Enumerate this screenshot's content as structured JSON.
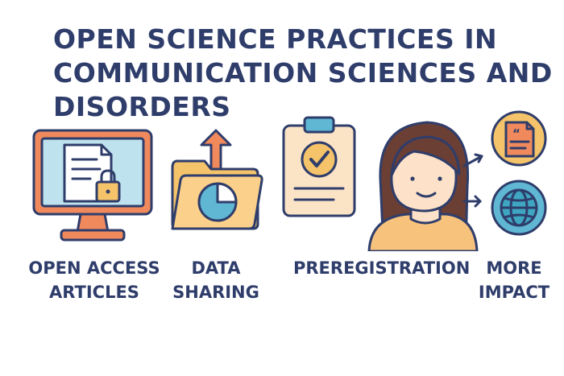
{
  "title": {
    "line1": "OPEN SCIENCE PRACTICES IN",
    "line2": "COMMUNICATION SCIENCES AND",
    "line3": "DISORDERS"
  },
  "items": [
    {
      "line1": "OPEN ACCESS",
      "line2": "ARTICLES",
      "icon": "computer-lock-document-icon"
    },
    {
      "line1": "DATA",
      "line2": "SHARING",
      "icon": "folder-upload-chart-icon"
    },
    {
      "line1": "PREREGISTRATION",
      "line2": "",
      "icon": "clipboard-check-icon"
    },
    {
      "line1": "MORE",
      "line2": "IMPACT",
      "icon": "researcher-impact-icon"
    }
  ],
  "colors": {
    "navy": "#2f3d6b",
    "orange": "#f08a5d",
    "cream": "#fbe3c6",
    "light_blue": "#bfe3ee",
    "blue": "#5fb7d4",
    "yellow": "#f5c36a",
    "teal": "#3fa6c2",
    "hair": "#6b3f34",
    "skin": "#fde1c8",
    "shirt": "#f6c27c"
  }
}
